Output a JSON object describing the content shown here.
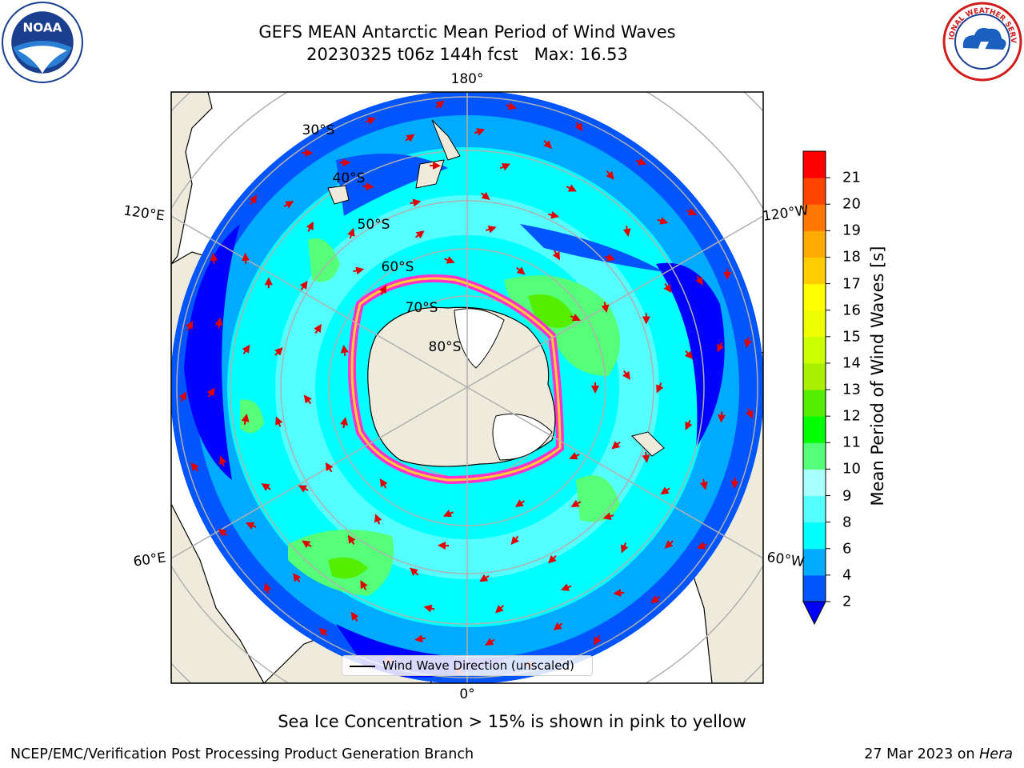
{
  "title": {
    "line1": "GEFS MEAN Antarctic Mean Period of Wind Waves",
    "line2": "20230325 t06z 144h fcst   Max: 16.53"
  },
  "logos": {
    "left": {
      "icon": "noaa-logo",
      "text": "NOAA"
    },
    "right": {
      "icon": "nws-logo",
      "text": "NATIONAL WEATHER SERVICE"
    }
  },
  "map": {
    "projection": "south-polar-stereographic",
    "longitude_labels": {
      "top": "180°",
      "upper_left": "120°E",
      "upper_right": "120°W",
      "lower_left": "60°E",
      "lower_right": "60°W",
      "bottom": "0°"
    },
    "latitude_labels": [
      "30°S",
      "40°S",
      "50°S",
      "60°S",
      "70°S",
      "80°S"
    ],
    "legend": "Wind Wave Direction (unscaled)",
    "arrow_color": "#ff0000",
    "land_color": "#efebdc",
    "gridline_color": "#b0b0b0"
  },
  "colorbar": {
    "label": "Mean Period of Wind Waves [s]",
    "ticks": [
      "2",
      "4",
      "6",
      "8",
      "9",
      "10",
      "11",
      "12",
      "13",
      "14",
      "15",
      "16",
      "17",
      "18",
      "19",
      "20",
      "21"
    ],
    "colors": [
      "#0000ff",
      "#0055ff",
      "#00aaff",
      "#00ffff",
      "#55ffff",
      "#aaffff",
      "#55ff77",
      "#00ff00",
      "#55ee00",
      "#aaee00",
      "#ccff00",
      "#eeff00",
      "#ffff00",
      "#ffcc00",
      "#ffaa00",
      "#ff7700",
      "#ff4400",
      "#ff0000"
    ],
    "extend": "min"
  },
  "caption": "Sea Ice Concentration > 15% is shown in pink to yellow",
  "footer": {
    "left": "NCEP/EMC/Verification Post Processing Product Generation Branch",
    "right_date": "27 Mar 2023 on ",
    "right_system": "Hera"
  }
}
